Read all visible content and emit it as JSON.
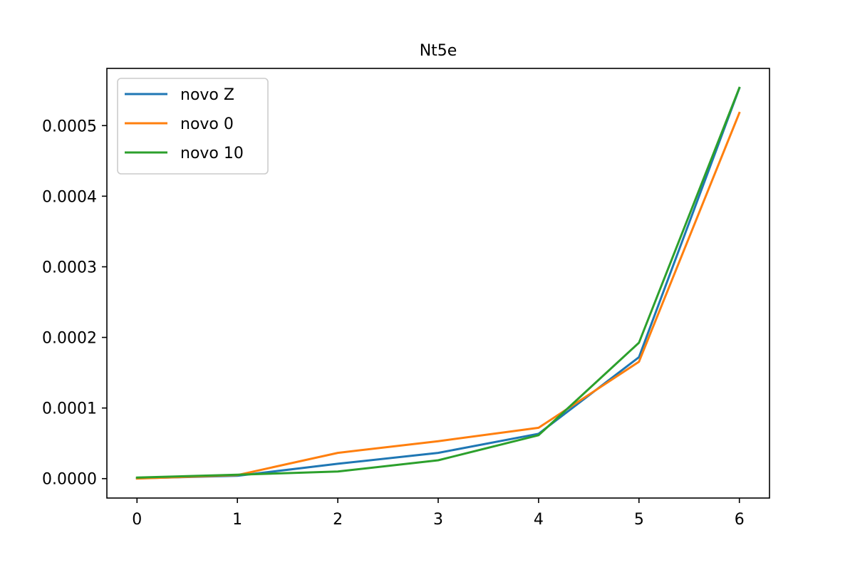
{
  "chart_data": {
    "type": "line",
    "title": "Nt5e",
    "xlabel": "",
    "ylabel": "",
    "x": [
      0,
      1,
      2,
      3,
      4,
      5,
      6
    ],
    "xlim": [
      -0.3,
      6.3
    ],
    "ylim": [
      -2.75e-05,
      0.000581
    ],
    "xticks": [
      0,
      1,
      2,
      3,
      4,
      5,
      6
    ],
    "xtick_labels": [
      "0",
      "1",
      "2",
      "3",
      "4",
      "5",
      "6"
    ],
    "yticks": [
      0,
      0.0001,
      0.0002,
      0.0003,
      0.0004,
      0.0005
    ],
    "ytick_labels": [
      "0.0000",
      "0.0001",
      "0.0002",
      "0.0003",
      "0.0004",
      "0.0005"
    ],
    "grid": false,
    "legend_position": "upper-left",
    "series": [
      {
        "name": "novo Z",
        "color": "#1f77b4",
        "values": [
          5e-07,
          4e-06,
          2.1e-05,
          3.65e-05,
          6.35e-05,
          0.000172,
          0.000553
        ]
      },
      {
        "name": "novo 0",
        "color": "#ff7f0e",
        "values": [
          0.0,
          5e-06,
          3.65e-05,
          5.3e-05,
          7.2e-05,
          0.0001655,
          0.000518
        ]
      },
      {
        "name": "novo 10",
        "color": "#2ca02c",
        "values": [
          1.5e-06,
          5.5e-06,
          1e-05,
          2.6e-05,
          6.15e-05,
          0.0001925,
          0.0005535
        ]
      }
    ]
  }
}
